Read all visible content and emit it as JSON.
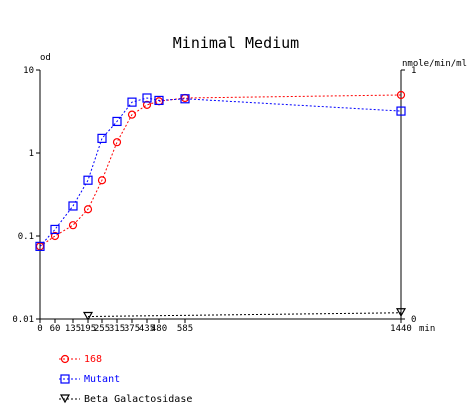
{
  "chart_data": {
    "type": "line",
    "title": "Minimal Medium",
    "xlabel": "min",
    "ylabel_left": "od",
    "ylabel_right": "nmole/min/ml",
    "x_ticks": [
      0,
      60,
      135,
      195,
      255,
      315,
      375,
      435,
      480,
      585,
      1440
    ],
    "x_tick_labels": [
      "0",
      "60",
      "135",
      "195",
      "255",
      "315",
      "375",
      "435",
      "480",
      "585",
      "1440"
    ],
    "x_range": [
      0,
      1440
    ],
    "y_left_scale": "log",
    "y_left_range": [
      0.01,
      10
    ],
    "y_left_ticks": [
      0.01,
      0.1,
      1,
      10
    ],
    "y_left_tick_labels": [
      "0.01",
      "0.1",
      "1",
      "10"
    ],
    "y_right_range": [
      0,
      1
    ],
    "y_right_ticks": [
      0,
      1
    ],
    "y_right_tick_labels": [
      "0",
      "1"
    ],
    "grid": false,
    "legend_position": "bottom-left",
    "series": [
      {
        "name": "168",
        "color": "#ff0000",
        "marker": "circle",
        "axis": "left",
        "x": [
          0,
          60,
          135,
          195,
          255,
          315,
          375,
          435,
          480,
          585,
          1440
        ],
        "y": [
          0.075,
          0.1,
          0.135,
          0.21,
          0.47,
          1.35,
          2.9,
          3.8,
          4.2,
          4.6,
          5.0
        ]
      },
      {
        "name": "Mutant",
        "color": "#0000ff",
        "marker": "square",
        "axis": "left",
        "x": [
          0,
          60,
          135,
          195,
          255,
          315,
          375,
          435,
          480,
          585,
          1440
        ],
        "y": [
          0.075,
          0.12,
          0.23,
          0.47,
          1.5,
          2.4,
          4.1,
          4.6,
          4.3,
          4.5,
          3.2
        ]
      },
      {
        "name": "Beta Galactosidase",
        "color": "#000000",
        "marker": "triangle-down",
        "axis": "right",
        "x": [
          195,
          1440
        ],
        "y": [
          0.01,
          0.025
        ]
      }
    ]
  }
}
